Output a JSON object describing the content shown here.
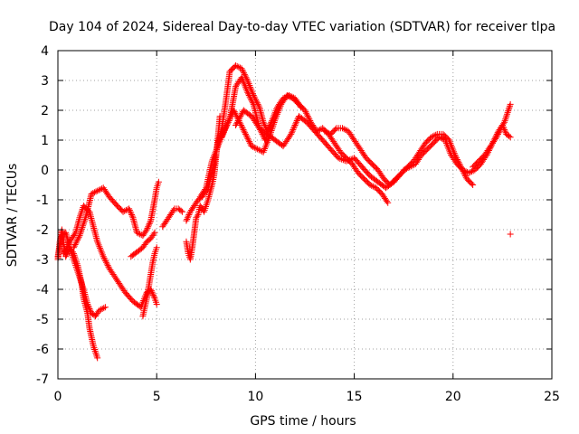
{
  "chart_data": {
    "type": "scatter",
    "title": "Day 104 of 2024, Sidereal Day-to-day VTEC variation (SDTVAR) for receiver tlpa",
    "xlabel": "GPS time / hours",
    "ylabel": "SDTVAR / TECUs",
    "xlim": [
      0,
      25
    ],
    "ylim": [
      -7,
      4
    ],
    "xticks": [
      0,
      5,
      10,
      15,
      20,
      25
    ],
    "yticks": [
      -7,
      -6,
      -5,
      -4,
      -3,
      -2,
      -1,
      0,
      1,
      2,
      3,
      4
    ],
    "grid": true,
    "marker": "plus",
    "color": "#ff0000",
    "series": [
      {
        "x": [
          0.0,
          0.1,
          0.2,
          0.3,
          0.4,
          0.6,
          0.8,
          1.0,
          1.2,
          1.3,
          1.5,
          1.6,
          1.8,
          2.0
        ],
        "y": [
          -3.0,
          -2.4,
          -2.0,
          -2.5,
          -2.9,
          -2.6,
          -2.8,
          -3.2,
          -3.8,
          -4.3,
          -4.8,
          -5.3,
          -5.9,
          -6.3
        ]
      },
      {
        "x": [
          0.0,
          0.2,
          0.4,
          0.6,
          0.9,
          1.1,
          1.3,
          1.5,
          1.7,
          1.9,
          2.1,
          2.4
        ],
        "y": [
          -2.9,
          -2.2,
          -2.1,
          -2.6,
          -3.2,
          -3.6,
          -4.0,
          -4.5,
          -4.8,
          -4.9,
          -4.7,
          -4.6
        ]
      },
      {
        "x": [
          0.3,
          0.6,
          0.9,
          1.1,
          1.3,
          1.6,
          1.8,
          2.0,
          2.3,
          2.6,
          3.0,
          3.4,
          3.8,
          4.2,
          4.5,
          4.7,
          4.9,
          5.0
        ],
        "y": [
          -2.8,
          -2.4,
          -2.1,
          -1.6,
          -1.2,
          -1.4,
          -1.9,
          -2.4,
          -2.9,
          -3.3,
          -3.7,
          -4.1,
          -4.4,
          -4.6,
          -4.1,
          -4.0,
          -4.3,
          -4.5
        ]
      },
      {
        "x": [
          0.8,
          1.1,
          1.4,
          1.7,
          2.0,
          2.3,
          2.6,
          3.0,
          3.3,
          3.6,
          3.8,
          4.0,
          4.3,
          4.5,
          4.7,
          4.9,
          5.0,
          5.1
        ],
        "y": [
          -2.6,
          -2.2,
          -1.6,
          -0.8,
          -0.7,
          -0.6,
          -0.9,
          -1.2,
          -1.4,
          -1.3,
          -1.6,
          -2.1,
          -2.2,
          -2.0,
          -1.7,
          -1.0,
          -0.6,
          -0.4
        ]
      },
      {
        "x": [
          3.7,
          3.9,
          4.1,
          4.3,
          4.5,
          4.7,
          4.9
        ],
        "y": [
          -2.9,
          -2.8,
          -2.7,
          -2.6,
          -2.4,
          -2.3,
          -2.1
        ]
      },
      {
        "x": [
          4.3,
          4.4,
          4.5,
          4.6,
          4.7,
          4.8,
          4.9,
          5.0
        ],
        "y": [
          -4.9,
          -4.6,
          -4.3,
          -3.9,
          -3.5,
          -3.1,
          -2.8,
          -2.6
        ]
      },
      {
        "x": [
          5.3,
          5.5,
          5.7,
          5.9,
          6.1,
          6.3
        ],
        "y": [
          -1.9,
          -1.7,
          -1.5,
          -1.3,
          -1.3,
          -1.4
        ]
      },
      {
        "x": [
          6.5,
          6.6,
          6.7,
          6.8,
          6.9,
          7.0,
          7.1,
          7.2,
          7.4,
          7.6,
          7.8,
          7.9,
          8.0,
          8.1,
          8.2
        ],
        "y": [
          -2.4,
          -2.8,
          -3.0,
          -2.6,
          -2.1,
          -1.6,
          -1.5,
          -1.2,
          -1.4,
          -1.0,
          -0.5,
          -0.2,
          0.4,
          1.1,
          1.8
        ]
      },
      {
        "x": [
          6.5,
          6.7,
          6.9,
          7.1,
          7.3,
          7.6,
          7.9,
          8.1,
          8.3,
          8.5,
          8.7,
          9.0,
          9.3,
          9.6,
          9.9,
          10.2,
          10.4,
          10.6,
          10.8
        ],
        "y": [
          -1.7,
          -1.4,
          -1.2,
          -1.0,
          -0.9,
          -0.6,
          0.2,
          0.9,
          1.4,
          2.3,
          3.3,
          3.5,
          3.4,
          3.0,
          2.5,
          2.1,
          1.6,
          1.3,
          1.6
        ]
      },
      {
        "x": [
          7.2,
          7.5,
          7.8,
          8.1,
          8.4,
          8.7,
          9.0,
          9.3,
          9.6,
          9.9,
          10.2,
          10.5,
          10.8,
          11.1,
          11.4,
          11.7,
          12.0,
          12.3
        ],
        "y": [
          -0.9,
          -0.6,
          0.3,
          0.8,
          1.3,
          1.7,
          2.8,
          3.1,
          2.6,
          2.2,
          1.4,
          1.0,
          1.6,
          2.1,
          2.4,
          2.5,
          2.4,
          2.1
        ]
      },
      {
        "x": [
          8.3,
          8.6,
          8.9,
          9.2,
          9.5,
          9.8,
          10.1,
          10.4,
          10.7,
          11.0,
          11.3,
          11.6,
          11.9,
          12.2,
          12.5,
          12.8,
          13.1,
          13.4,
          13.7,
          14.0,
          14.3,
          14.6,
          14.9,
          15.2,
          15.5,
          15.8,
          16.1,
          16.4,
          16.7
        ],
        "y": [
          1.1,
          1.6,
          2.0,
          1.6,
          1.2,
          0.8,
          0.7,
          0.6,
          1.1,
          1.7,
          2.2,
          2.5,
          2.4,
          2.2,
          2.0,
          1.6,
          1.3,
          1.4,
          1.2,
          0.9,
          0.6,
          0.4,
          0.2,
          -0.1,
          -0.3,
          -0.5,
          -0.6,
          -0.8,
          -1.1
        ]
      },
      {
        "x": [
          9.0,
          9.4,
          9.8,
          10.2,
          10.6,
          11.0,
          11.4,
          11.8,
          12.2,
          12.6,
          13.0,
          13.4,
          13.8,
          14.2,
          14.6,
          15.0,
          15.4,
          15.8,
          16.2,
          16.6,
          17.0,
          17.4
        ],
        "y": [
          1.5,
          2.0,
          1.8,
          1.4,
          1.2,
          1.0,
          0.8,
          1.2,
          1.8,
          1.6,
          1.3,
          1.0,
          0.7,
          0.4,
          0.3,
          0.4,
          0.1,
          -0.2,
          -0.4,
          -0.6,
          -0.4,
          -0.1
        ]
      },
      {
        "x": [
          13.5,
          13.8,
          14.1,
          14.4,
          14.7,
          15.0,
          15.3,
          15.6,
          15.9,
          16.2,
          16.5,
          16.8,
          17.1,
          17.4,
          17.7,
          18.0,
          18.3,
          18.6,
          18.9,
          19.2,
          19.5,
          19.8,
          20.1,
          20.4,
          20.7,
          21.0
        ],
        "y": [
          1.3,
          1.2,
          1.4,
          1.4,
          1.3,
          1.0,
          0.7,
          0.4,
          0.2,
          0.0,
          -0.3,
          -0.5,
          -0.3,
          -0.1,
          0.1,
          0.3,
          0.6,
          0.9,
          1.1,
          1.2,
          1.2,
          1.0,
          0.5,
          0.1,
          -0.3,
          -0.5
        ]
      },
      {
        "x": [
          17.5,
          17.8,
          18.1,
          18.4,
          18.7,
          19.0,
          19.3,
          19.6,
          19.9,
          20.2,
          20.5,
          20.8,
          21.1,
          21.4,
          21.7,
          22.0,
          22.3,
          22.6,
          22.9
        ],
        "y": [
          0.0,
          0.1,
          0.2,
          0.5,
          0.7,
          0.9,
          1.1,
          1.0,
          0.5,
          0.2,
          0.0,
          -0.1,
          0.0,
          0.2,
          0.5,
          0.9,
          1.3,
          1.6,
          2.2
        ]
      },
      {
        "x": [
          21.0,
          21.3,
          21.6,
          21.9,
          22.2,
          22.5,
          22.7,
          22.9
        ],
        "y": [
          0.1,
          0.3,
          0.5,
          0.8,
          1.1,
          1.5,
          1.2,
          1.1
        ]
      },
      {
        "x": [
          22.9
        ],
        "y": [
          -2.15
        ]
      }
    ]
  }
}
